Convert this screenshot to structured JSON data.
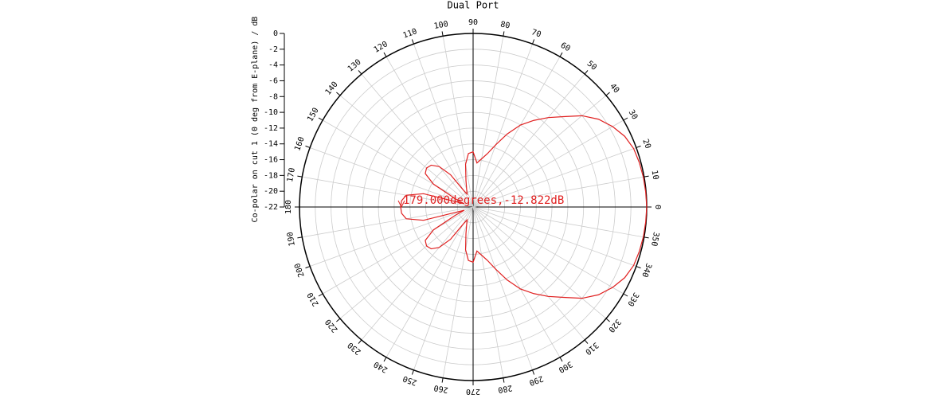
{
  "chart_data": {
    "type": "polar",
    "title": "Dual Port",
    "r_axis_label": "Co-polar on cut 1 (0 deg from E-plane) / dB",
    "rlim": [
      -22,
      0
    ],
    "rticks": [
      0,
      -2,
      -4,
      -6,
      -8,
      -10,
      -12,
      -14,
      -16,
      -18,
      -20,
      -22
    ],
    "angle_ticks": [
      0,
      10,
      20,
      30,
      40,
      50,
      60,
      70,
      80,
      90,
      100,
      110,
      120,
      130,
      140,
      150,
      160,
      170,
      180,
      190,
      200,
      210,
      220,
      230,
      240,
      250,
      260,
      270,
      280,
      290,
      300,
      310,
      320,
      330,
      340,
      350
    ],
    "grid": true,
    "annotation": "179.000degrees,-12.822dB",
    "series": [
      {
        "color": "#e02020",
        "theta": [
          0,
          5,
          10,
          15,
          20,
          25,
          30,
          35,
          40,
          45,
          50,
          55,
          60,
          65,
          70,
          75,
          80,
          85,
          90,
          95,
          100,
          105,
          110,
          115,
          120,
          125,
          130,
          135,
          140,
          145,
          150,
          155,
          160,
          165,
          170,
          175,
          180,
          185,
          190,
          195,
          200,
          205,
          210,
          215,
          220,
          225,
          230,
          235,
          240,
          245,
          250,
          255,
          260,
          265,
          270,
          275,
          280,
          285,
          290,
          295,
          300,
          305,
          310,
          315,
          320,
          325,
          330,
          335,
          340,
          345,
          350,
          355
        ],
        "r": [
          0,
          -0.05,
          -0.1,
          -0.2,
          -0.35,
          -0.8,
          -1.6,
          -2.6,
          -4.0,
          -5.8,
          -7.2,
          -8.6,
          -10.0,
          -11.8,
          -13.6,
          -15.0,
          -15.8,
          -16.4,
          -15.0,
          -15.2,
          -16.5,
          -18.5,
          -19.6,
          -20.2,
          -19.5,
          -17.0,
          -15.3,
          -14.5,
          -14.3,
          -14.6,
          -16.2,
          -19.5,
          -20.8,
          -15.5,
          -13.4,
          -12.9,
          -12.822,
          -12.9,
          -13.4,
          -15.5,
          -20.8,
          -19.5,
          -16.2,
          -14.6,
          -14.3,
          -14.5,
          -15.3,
          -17.0,
          -19.5,
          -20.2,
          -19.6,
          -18.5,
          -16.5,
          -15.2,
          -15.0,
          -16.4,
          -15.8,
          -15.0,
          -13.6,
          -11.8,
          -10.0,
          -8.6,
          -7.2,
          -5.8,
          -4.0,
          -2.6,
          -1.6,
          -0.8,
          -0.35,
          -0.2,
          -0.1,
          -0.05
        ]
      }
    ]
  }
}
